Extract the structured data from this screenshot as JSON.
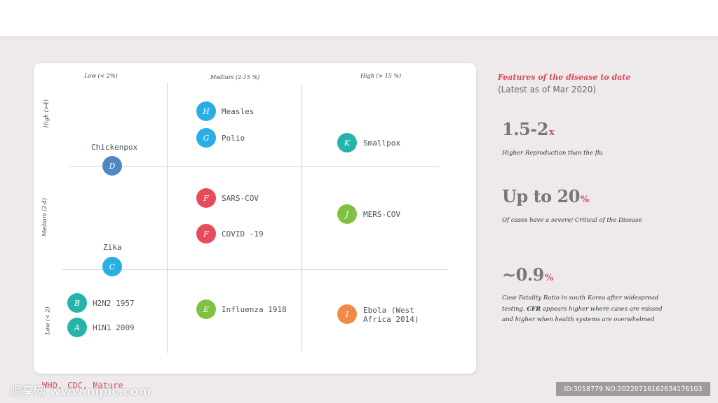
{
  "chart_data": {
    "type": "scatter",
    "columns": [
      "Low (< 2%)",
      "Medium (2-15 %)",
      "High (> 15 %)"
    ],
    "rows": [
      "High (>4)",
      "Medium (2-4)",
      "Low (< 2)"
    ],
    "points": [
      {
        "letter": "H",
        "name": "Measles",
        "col": "Medium (2-15 %)",
        "row": "High (>4)",
        "color": "#29aee6"
      },
      {
        "letter": "G",
        "name": "Polio",
        "col": "Medium (2-15 %)",
        "row": "High (>4)",
        "color": "#29aee6"
      },
      {
        "letter": "K",
        "name": "Smallpox",
        "col": "High (> 15 %)",
        "row": "High (>4)",
        "color": "#26b3aa"
      },
      {
        "letter": "D",
        "name": "Chickenpox",
        "col": "Low (< 2%)",
        "row": "High (>4)",
        "color": "#4f86c6"
      },
      {
        "letter": "F",
        "name": "SARS-COV",
        "col": "Medium (2-15 %)",
        "row": "Medium (2-4)",
        "color": "#e84b5a"
      },
      {
        "letter": "F",
        "name": "COVID -19",
        "col": "Medium (2-15 %)",
        "row": "Medium (2-4)",
        "color": "#e84b5a"
      },
      {
        "letter": "J",
        "name": "MERS-COV",
        "col": "High (> 15 %)",
        "row": "Medium (2-4)",
        "color": "#7fc241"
      },
      {
        "letter": "C",
        "name": "Zika",
        "col": "Low (< 2%)",
        "row": "Medium (2-4)",
        "color": "#29aee6"
      },
      {
        "letter": "B",
        "name": "H2N2 1957",
        "col": "Low (< 2%)",
        "row": "Low (< 2)",
        "color": "#26b3aa"
      },
      {
        "letter": "A",
        "name": "H1N1 2009",
        "col": "Low (< 2%)",
        "row": "Low (< 2)",
        "color": "#26b3aa"
      },
      {
        "letter": "E",
        "name": "Influenza 1918",
        "col": "Medium (2-15 %)",
        "row": "Low (< 2)",
        "color": "#7fc241"
      },
      {
        "letter": "I",
        "name": "Ebola (West Africa 2014)",
        "col": "High (> 15 %)",
        "row": "Low (< 2)",
        "color": "#f08a46"
      }
    ]
  },
  "panel": {
    "title": "Features of the disease to date",
    "subtitle": "(Latest as of Mar 2020)",
    "stats": [
      {
        "value": "1.5-2",
        "suffix": "x",
        "desc": "Higher Reproduction than the flu"
      },
      {
        "value": "Up to 20",
        "suffix": "%",
        "desc": "Of cases have a severe/ Critical of the Disease"
      },
      {
        "value": "~0.9",
        "suffix": "%",
        "desc_a": "Case Fatality Ratio in south Korea after widespread testing. ",
        "desc_b": "CFR",
        "desc_c": " appears higher where cases are missed and higher when health systems are overwhelmed"
      }
    ]
  },
  "source": "WHO, CDC, Nature",
  "watermark": {
    "left": "昵享网 www.nipic.com",
    "right": "ID:3018779 NO:20220716162634176103"
  },
  "colors": {
    "accent": "#d64a54",
    "background": "#eeeaeb"
  }
}
